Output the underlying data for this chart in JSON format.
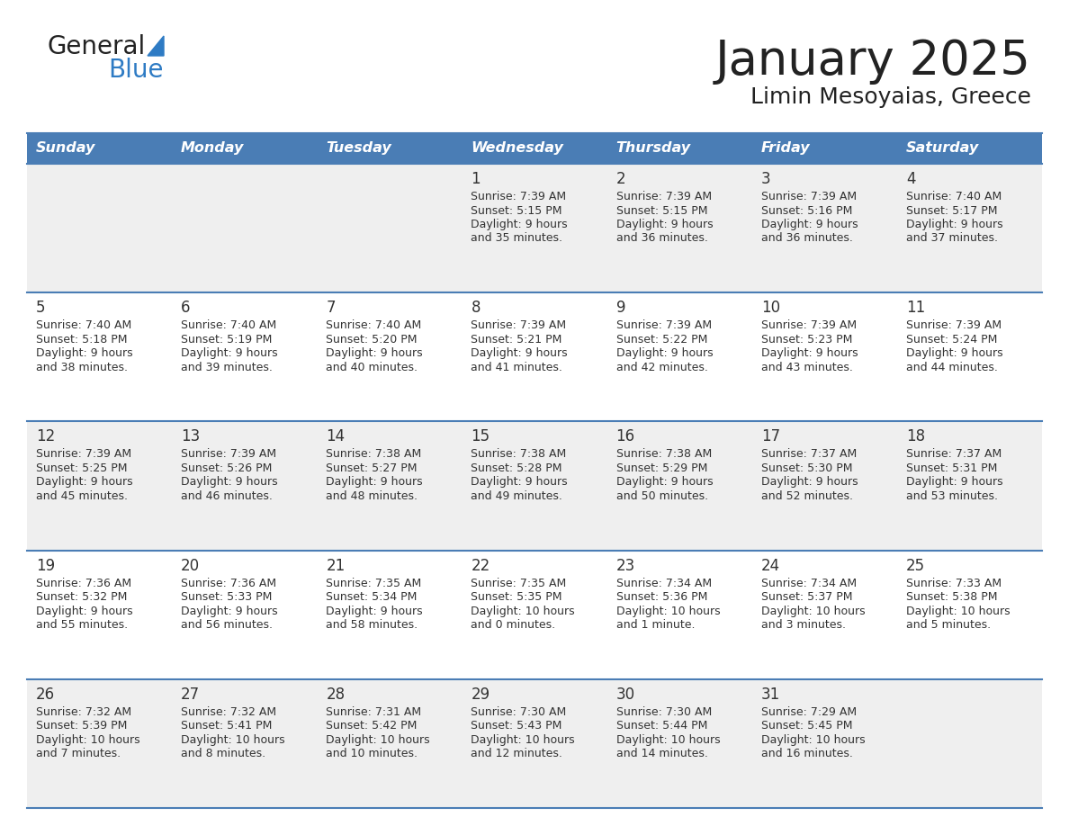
{
  "title": "January 2025",
  "subtitle": "Limin Mesoyaias, Greece",
  "days_of_week": [
    "Sunday",
    "Monday",
    "Tuesday",
    "Wednesday",
    "Thursday",
    "Friday",
    "Saturday"
  ],
  "header_bg": "#4A7DB5",
  "header_text": "#FFFFFF",
  "row_bg_odd": "#EFEFEF",
  "row_bg_even": "#FFFFFF",
  "cell_border": "#4A7DB5",
  "day_number_color": "#333333",
  "text_color": "#333333",
  "title_color": "#222222",
  "logo_general_color": "#222222",
  "logo_blue_color": "#2E7BC4",
  "weeks": [
    [
      {
        "day": null,
        "sunrise": null,
        "sunset": null,
        "daylight_line1": null,
        "daylight_line2": null
      },
      {
        "day": null,
        "sunrise": null,
        "sunset": null,
        "daylight_line1": null,
        "daylight_line2": null
      },
      {
        "day": null,
        "sunrise": null,
        "sunset": null,
        "daylight_line1": null,
        "daylight_line2": null
      },
      {
        "day": 1,
        "sunrise": "7:39 AM",
        "sunset": "5:15 PM",
        "daylight_line1": "Daylight: 9 hours",
        "daylight_line2": "and 35 minutes."
      },
      {
        "day": 2,
        "sunrise": "7:39 AM",
        "sunset": "5:15 PM",
        "daylight_line1": "Daylight: 9 hours",
        "daylight_line2": "and 36 minutes."
      },
      {
        "day": 3,
        "sunrise": "7:39 AM",
        "sunset": "5:16 PM",
        "daylight_line1": "Daylight: 9 hours",
        "daylight_line2": "and 36 minutes."
      },
      {
        "day": 4,
        "sunrise": "7:40 AM",
        "sunset": "5:17 PM",
        "daylight_line1": "Daylight: 9 hours",
        "daylight_line2": "and 37 minutes."
      }
    ],
    [
      {
        "day": 5,
        "sunrise": "7:40 AM",
        "sunset": "5:18 PM",
        "daylight_line1": "Daylight: 9 hours",
        "daylight_line2": "and 38 minutes."
      },
      {
        "day": 6,
        "sunrise": "7:40 AM",
        "sunset": "5:19 PM",
        "daylight_line1": "Daylight: 9 hours",
        "daylight_line2": "and 39 minutes."
      },
      {
        "day": 7,
        "sunrise": "7:40 AM",
        "sunset": "5:20 PM",
        "daylight_line1": "Daylight: 9 hours",
        "daylight_line2": "and 40 minutes."
      },
      {
        "day": 8,
        "sunrise": "7:39 AM",
        "sunset": "5:21 PM",
        "daylight_line1": "Daylight: 9 hours",
        "daylight_line2": "and 41 minutes."
      },
      {
        "day": 9,
        "sunrise": "7:39 AM",
        "sunset": "5:22 PM",
        "daylight_line1": "Daylight: 9 hours",
        "daylight_line2": "and 42 minutes."
      },
      {
        "day": 10,
        "sunrise": "7:39 AM",
        "sunset": "5:23 PM",
        "daylight_line1": "Daylight: 9 hours",
        "daylight_line2": "and 43 minutes."
      },
      {
        "day": 11,
        "sunrise": "7:39 AM",
        "sunset": "5:24 PM",
        "daylight_line1": "Daylight: 9 hours",
        "daylight_line2": "and 44 minutes."
      }
    ],
    [
      {
        "day": 12,
        "sunrise": "7:39 AM",
        "sunset": "5:25 PM",
        "daylight_line1": "Daylight: 9 hours",
        "daylight_line2": "and 45 minutes."
      },
      {
        "day": 13,
        "sunrise": "7:39 AM",
        "sunset": "5:26 PM",
        "daylight_line1": "Daylight: 9 hours",
        "daylight_line2": "and 46 minutes."
      },
      {
        "day": 14,
        "sunrise": "7:38 AM",
        "sunset": "5:27 PM",
        "daylight_line1": "Daylight: 9 hours",
        "daylight_line2": "and 48 minutes."
      },
      {
        "day": 15,
        "sunrise": "7:38 AM",
        "sunset": "5:28 PM",
        "daylight_line1": "Daylight: 9 hours",
        "daylight_line2": "and 49 minutes."
      },
      {
        "day": 16,
        "sunrise": "7:38 AM",
        "sunset": "5:29 PM",
        "daylight_line1": "Daylight: 9 hours",
        "daylight_line2": "and 50 minutes."
      },
      {
        "day": 17,
        "sunrise": "7:37 AM",
        "sunset": "5:30 PM",
        "daylight_line1": "Daylight: 9 hours",
        "daylight_line2": "and 52 minutes."
      },
      {
        "day": 18,
        "sunrise": "7:37 AM",
        "sunset": "5:31 PM",
        "daylight_line1": "Daylight: 9 hours",
        "daylight_line2": "and 53 minutes."
      }
    ],
    [
      {
        "day": 19,
        "sunrise": "7:36 AM",
        "sunset": "5:32 PM",
        "daylight_line1": "Daylight: 9 hours",
        "daylight_line2": "and 55 minutes."
      },
      {
        "day": 20,
        "sunrise": "7:36 AM",
        "sunset": "5:33 PM",
        "daylight_line1": "Daylight: 9 hours",
        "daylight_line2": "and 56 minutes."
      },
      {
        "day": 21,
        "sunrise": "7:35 AM",
        "sunset": "5:34 PM",
        "daylight_line1": "Daylight: 9 hours",
        "daylight_line2": "and 58 minutes."
      },
      {
        "day": 22,
        "sunrise": "7:35 AM",
        "sunset": "5:35 PM",
        "daylight_line1": "Daylight: 10 hours",
        "daylight_line2": "and 0 minutes."
      },
      {
        "day": 23,
        "sunrise": "7:34 AM",
        "sunset": "5:36 PM",
        "daylight_line1": "Daylight: 10 hours",
        "daylight_line2": "and 1 minute."
      },
      {
        "day": 24,
        "sunrise": "7:34 AM",
        "sunset": "5:37 PM",
        "daylight_line1": "Daylight: 10 hours",
        "daylight_line2": "and 3 minutes."
      },
      {
        "day": 25,
        "sunrise": "7:33 AM",
        "sunset": "5:38 PM",
        "daylight_line1": "Daylight: 10 hours",
        "daylight_line2": "and 5 minutes."
      }
    ],
    [
      {
        "day": 26,
        "sunrise": "7:32 AM",
        "sunset": "5:39 PM",
        "daylight_line1": "Daylight: 10 hours",
        "daylight_line2": "and 7 minutes."
      },
      {
        "day": 27,
        "sunrise": "7:32 AM",
        "sunset": "5:41 PM",
        "daylight_line1": "Daylight: 10 hours",
        "daylight_line2": "and 8 minutes."
      },
      {
        "day": 28,
        "sunrise": "7:31 AM",
        "sunset": "5:42 PM",
        "daylight_line1": "Daylight: 10 hours",
        "daylight_line2": "and 10 minutes."
      },
      {
        "day": 29,
        "sunrise": "7:30 AM",
        "sunset": "5:43 PM",
        "daylight_line1": "Daylight: 10 hours",
        "daylight_line2": "and 12 minutes."
      },
      {
        "day": 30,
        "sunrise": "7:30 AM",
        "sunset": "5:44 PM",
        "daylight_line1": "Daylight: 10 hours",
        "daylight_line2": "and 14 minutes."
      },
      {
        "day": 31,
        "sunrise": "7:29 AM",
        "sunset": "5:45 PM",
        "daylight_line1": "Daylight: 10 hours",
        "daylight_line2": "and 16 minutes."
      },
      {
        "day": null,
        "sunrise": null,
        "sunset": null,
        "daylight_line1": null,
        "daylight_line2": null
      }
    ]
  ],
  "figsize": [
    11.88,
    9.18
  ],
  "dpi": 100
}
